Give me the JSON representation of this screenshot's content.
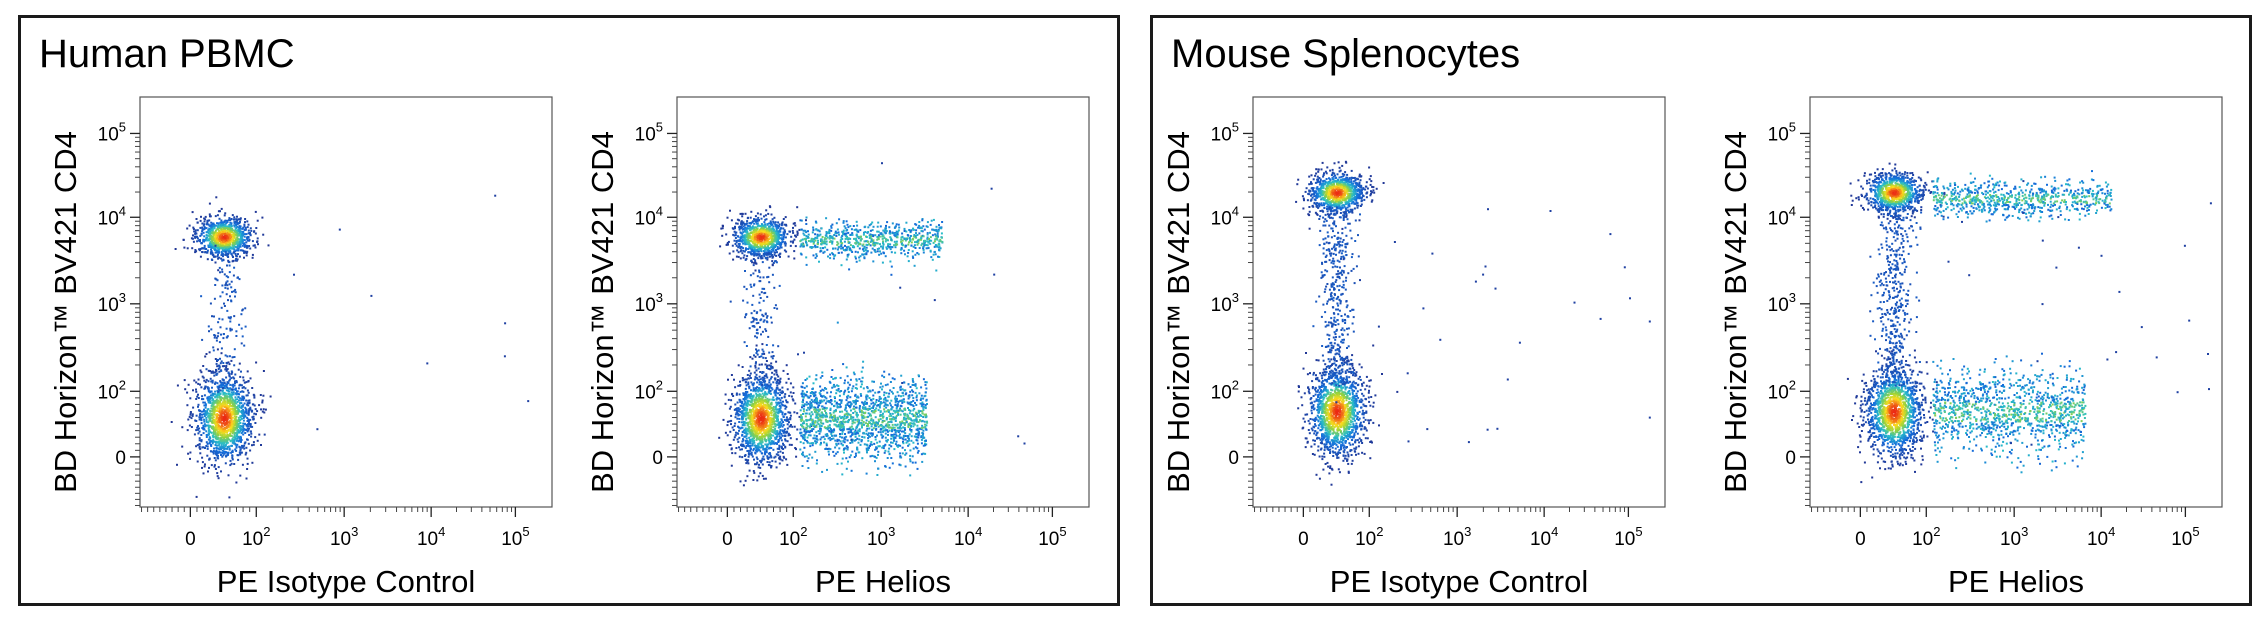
{
  "panels": [
    {
      "title": "Human PBMC"
    },
    {
      "title": "Mouse Splenocytes"
    }
  ],
  "chart_data": [
    {
      "type": "scatter",
      "subtype": "flow-cytometry-density-dot-plot",
      "panel": "Human PBMC",
      "xlabel": "PE Isotype Control",
      "ylabel": "BD Horizon™ BV421 CD4",
      "x_ticks": [
        {
          "base": "0",
          "exp": ""
        },
        {
          "base": "10",
          "exp": "2"
        },
        {
          "base": "10",
          "exp": "3"
        },
        {
          "base": "10",
          "exp": "4"
        },
        {
          "base": "10",
          "exp": "5"
        }
      ],
      "y_ticks": [
        {
          "base": "0",
          "exp": ""
        },
        {
          "base": "10",
          "exp": "2"
        },
        {
          "base": "10",
          "exp": "3"
        },
        {
          "base": "10",
          "exp": "4"
        },
        {
          "base": "10",
          "exp": "5"
        }
      ],
      "populations": [
        {
          "name": "CD4+ Helios-negative",
          "x": 50,
          "y": 6000,
          "density": "high"
        },
        {
          "name": "CD4- Helios-negative",
          "x": 50,
          "y": 60,
          "density": "high"
        }
      ]
    },
    {
      "type": "scatter",
      "subtype": "flow-cytometry-density-dot-plot",
      "panel": "Human PBMC",
      "xlabel": "PE Helios",
      "ylabel": "BD Horizon™ BV421 CD4",
      "x_ticks": [
        {
          "base": "0",
          "exp": ""
        },
        {
          "base": "10",
          "exp": "2"
        },
        {
          "base": "10",
          "exp": "3"
        },
        {
          "base": "10",
          "exp": "4"
        },
        {
          "base": "10",
          "exp": "5"
        }
      ],
      "y_ticks": [
        {
          "base": "0",
          "exp": ""
        },
        {
          "base": "10",
          "exp": "2"
        },
        {
          "base": "10",
          "exp": "3"
        },
        {
          "base": "10",
          "exp": "4"
        },
        {
          "base": "10",
          "exp": "5"
        }
      ],
      "populations": [
        {
          "name": "CD4+ Helios-negative",
          "x": 50,
          "y": 6000,
          "density": "high"
        },
        {
          "name": "CD4+ Helios-positive",
          "x": 1500,
          "y": 5500,
          "density": "low"
        },
        {
          "name": "CD4- Helios-negative",
          "x": 50,
          "y": 60,
          "density": "high"
        },
        {
          "name": "CD4- Helios-positive",
          "x": 1000,
          "y": 60,
          "density": "medium"
        }
      ]
    },
    {
      "type": "scatter",
      "subtype": "flow-cytometry-density-dot-plot",
      "panel": "Mouse Splenocytes",
      "xlabel": "PE Isotype Control",
      "ylabel": "BD Horizon™ BV421 CD4",
      "x_ticks": [
        {
          "base": "0",
          "exp": ""
        },
        {
          "base": "10",
          "exp": "2"
        },
        {
          "base": "10",
          "exp": "3"
        },
        {
          "base": "10",
          "exp": "4"
        },
        {
          "base": "10",
          "exp": "5"
        }
      ],
      "y_ticks": [
        {
          "base": "0",
          "exp": ""
        },
        {
          "base": "10",
          "exp": "2"
        },
        {
          "base": "10",
          "exp": "3"
        },
        {
          "base": "10",
          "exp": "4"
        },
        {
          "base": "10",
          "exp": "5"
        }
      ],
      "populations": [
        {
          "name": "CD4+ Helios-negative",
          "x": 50,
          "y": 20000,
          "density": "high"
        },
        {
          "name": "CD4- Helios-negative",
          "x": 50,
          "y": 70,
          "density": "high"
        }
      ]
    },
    {
      "type": "scatter",
      "subtype": "flow-cytometry-density-dot-plot",
      "panel": "Mouse Splenocytes",
      "xlabel": "PE Helios",
      "ylabel": "BD Horizon™ BV421 CD4",
      "x_ticks": [
        {
          "base": "0",
          "exp": ""
        },
        {
          "base": "10",
          "exp": "2"
        },
        {
          "base": "10",
          "exp": "3"
        },
        {
          "base": "10",
          "exp": "4"
        },
        {
          "base": "10",
          "exp": "5"
        }
      ],
      "y_ticks": [
        {
          "base": "0",
          "exp": ""
        },
        {
          "base": "10",
          "exp": "2"
        },
        {
          "base": "10",
          "exp": "3"
        },
        {
          "base": "10",
          "exp": "4"
        },
        {
          "base": "10",
          "exp": "5"
        }
      ],
      "populations": [
        {
          "name": "CD4+ Helios-negative",
          "x": 50,
          "y": 20000,
          "density": "high"
        },
        {
          "name": "CD4+ Helios-positive",
          "x": 3000,
          "y": 17000,
          "density": "low"
        },
        {
          "name": "CD4- Helios-negative",
          "x": 50,
          "y": 70,
          "density": "high"
        },
        {
          "name": "CD4- Helios-positive",
          "x": 1500,
          "y": 70,
          "density": "low"
        }
      ]
    }
  ]
}
